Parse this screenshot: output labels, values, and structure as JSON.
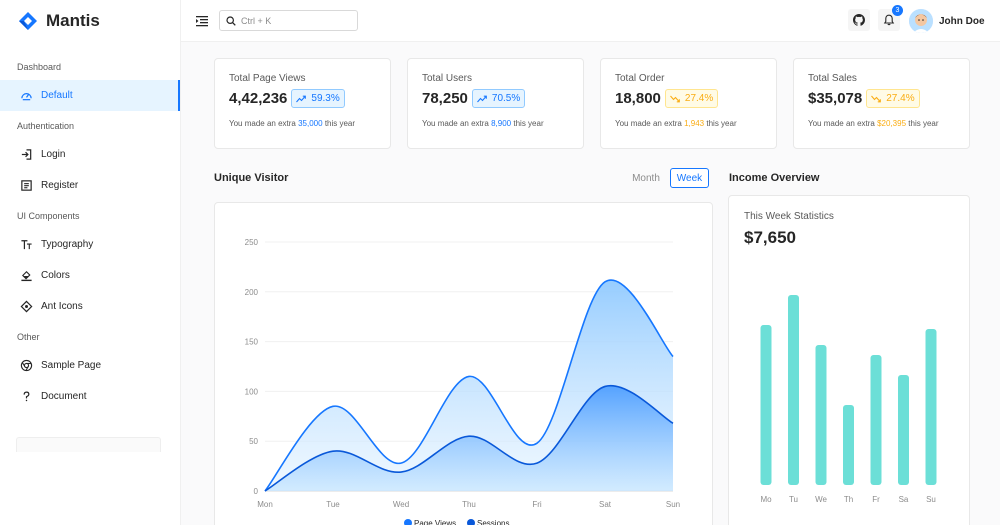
{
  "app": {
    "name": "Mantis"
  },
  "sidebar": {
    "sections": [
      {
        "title": "Dashboard",
        "items": [
          {
            "label": "Default",
            "icon": "dashboard-icon",
            "active": true
          }
        ]
      },
      {
        "title": "Authentication",
        "items": [
          {
            "label": "Login",
            "icon": "login-icon"
          },
          {
            "label": "Register",
            "icon": "register-icon"
          }
        ]
      },
      {
        "title": "UI Components",
        "items": [
          {
            "label": "Typography",
            "icon": "typography-icon"
          },
          {
            "label": "Colors",
            "icon": "bg-colors-icon"
          },
          {
            "label": "Ant Icons",
            "icon": "ant-design-icon"
          }
        ]
      },
      {
        "title": "Other",
        "items": [
          {
            "label": "Sample Page",
            "icon": "chrome-icon"
          },
          {
            "label": "Document",
            "icon": "question-icon"
          }
        ]
      }
    ]
  },
  "header": {
    "search_placeholder": "Ctrl + K",
    "notification_count": "3",
    "user_name": "John Doe"
  },
  "stats": [
    {
      "title": "Total Page Views",
      "value": "4,42,236",
      "percent": "59.3%",
      "trend": "up",
      "color": "#1677ff",
      "note_prefix": "You made an extra",
      "note_value": "35,000",
      "note_suffix": "this year"
    },
    {
      "title": "Total Users",
      "value": "78,250",
      "percent": "70.5%",
      "trend": "up",
      "color": "#1677ff",
      "note_prefix": "You made an extra",
      "note_value": "8,900",
      "note_suffix": "this year"
    },
    {
      "title": "Total Order",
      "value": "18,800",
      "percent": "27.4%",
      "trend": "down",
      "color": "#faad14",
      "note_prefix": "You made an extra",
      "note_value": "1,943",
      "note_suffix": "this year"
    },
    {
      "title": "Total Sales",
      "value": "$35,078",
      "percent": "27.4%",
      "trend": "down",
      "color": "#faad14",
      "note_prefix": "You made an extra",
      "note_value": "$20,395",
      "note_suffix": "this year"
    }
  ],
  "unique_visitor": {
    "title": "Unique Visitor",
    "month_label": "Month",
    "week_label": "Week",
    "selected": "Week"
  },
  "income": {
    "title": "Income Overview",
    "subtitle": "This Week Statistics",
    "value": "$7,650"
  },
  "chart_data": [
    {
      "type": "area",
      "categories": [
        "Mon",
        "Tue",
        "Wed",
        "Thu",
        "Fri",
        "Sat",
        "Sun"
      ],
      "ylim": [
        0,
        250
      ],
      "yticks": [
        0,
        50,
        100,
        150,
        200,
        250
      ],
      "grid": true,
      "legend_position": "bottom",
      "series": [
        {
          "name": "Page Views",
          "values": [
            0,
            85,
            28,
            115,
            48,
            210,
            135
          ],
          "color": "#1677ff"
        },
        {
          "name": "Sessions",
          "values": [
            0,
            40,
            19,
            55,
            28,
            105,
            68
          ],
          "color": "#0958d9"
        }
      ]
    },
    {
      "type": "bar",
      "categories": [
        "Mo",
        "Tu",
        "We",
        "Th",
        "Fr",
        "Sa",
        "Su"
      ],
      "values": [
        80,
        95,
        70,
        40,
        65,
        55,
        78
      ],
      "color": "#13c2c2"
    }
  ]
}
